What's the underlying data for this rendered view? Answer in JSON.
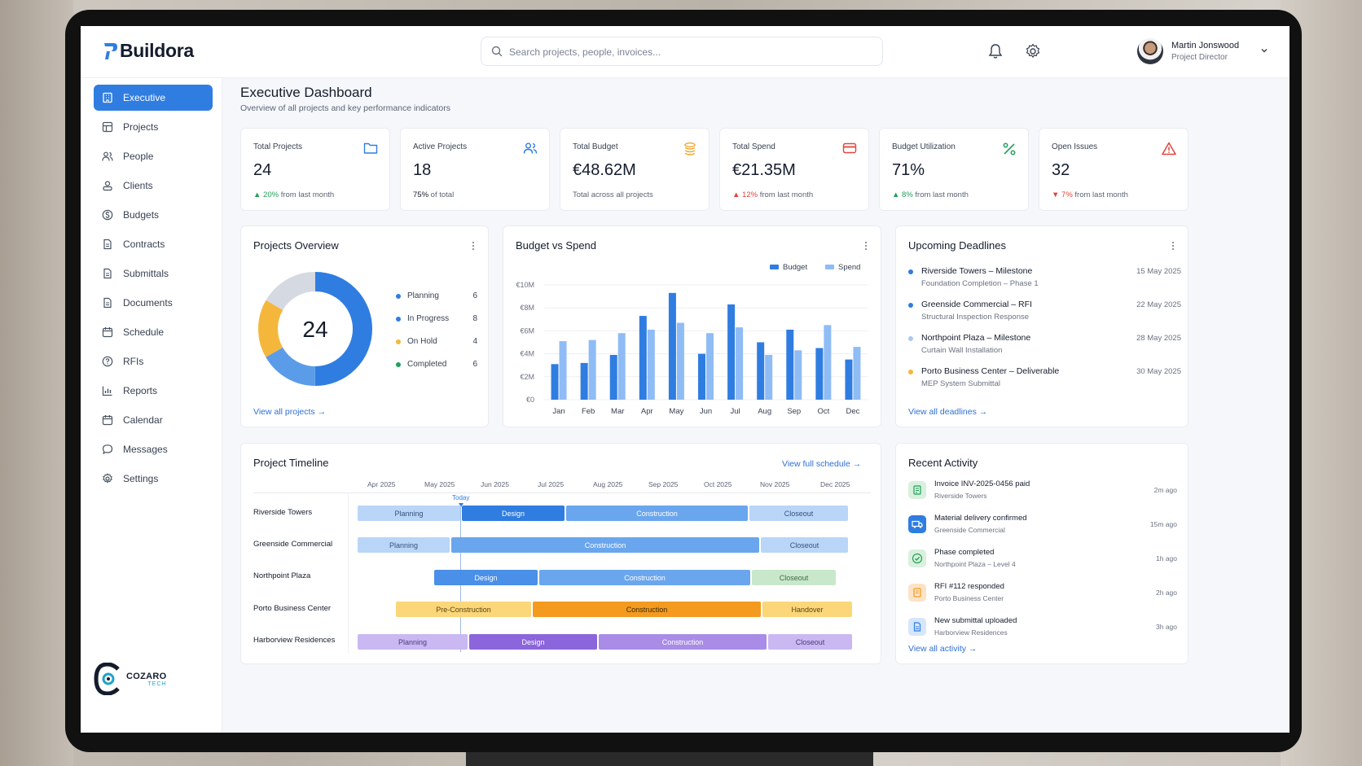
{
  "app": {
    "brand": "Buildora"
  },
  "search": {
    "placeholder": "Search projects, people, invoices..."
  },
  "user": {
    "name": "Martin Jonswood",
    "role": "Project Director"
  },
  "sidebar": {
    "items": [
      {
        "label": "Executive",
        "icon": "building-icon",
        "active": true
      },
      {
        "label": "Projects",
        "icon": "grid-icon"
      },
      {
        "label": "People",
        "icon": "people-icon"
      },
      {
        "label": "Clients",
        "icon": "clients-icon"
      },
      {
        "label": "Budgets",
        "icon": "dollar-icon"
      },
      {
        "label": "Contracts",
        "icon": "document-icon"
      },
      {
        "label": "Submittals",
        "icon": "document-icon"
      },
      {
        "label": "Documents",
        "icon": "document-icon"
      },
      {
        "label": "Schedule",
        "icon": "calendar-icon"
      },
      {
        "label": "RFIs",
        "icon": "question-icon"
      },
      {
        "label": "Reports",
        "icon": "bar-chart-icon"
      },
      {
        "label": "Calendar",
        "icon": "calendar-icon"
      },
      {
        "label": "Messages",
        "icon": "chat-icon"
      },
      {
        "label": "Settings",
        "icon": "gear-icon"
      }
    ],
    "footer_brand": {
      "name": "COZARO",
      "sub": "TECH"
    }
  },
  "header": {
    "title": "Executive Dashboard",
    "subtitle": "Overview of all projects and key performance indicators"
  },
  "kpis": [
    {
      "label": "Total Projects",
      "value": "24",
      "trend": "▲ 20%",
      "note": " from last month",
      "dir": "up",
      "icon": "folder-icon",
      "color": "#2f7de1"
    },
    {
      "label": "Active Projects",
      "value": "18",
      "trend": "75%",
      "note": " of total",
      "dir": "neutral",
      "icon": "people-icon",
      "color": "#2f7de1"
    },
    {
      "label": "Total Budget",
      "value": "€48.62M",
      "trend": "",
      "note": "Total across all projects",
      "dir": "neutral",
      "icon": "coins-icon",
      "color": "#f0a92a"
    },
    {
      "label": "Total Spend",
      "value": "€21.35M",
      "trend": "▲ 12%",
      "note": " from last month",
      "dir": "down",
      "icon": "card-icon",
      "color": "#e0453d"
    },
    {
      "label": "Budget Utilization",
      "value": "71%",
      "trend": "▲ 8%",
      "note": " from last month",
      "dir": "up",
      "icon": "percent-icon",
      "color": "#22a05b"
    },
    {
      "label": "Open Issues",
      "value": "32",
      "trend": "▼ 7%",
      "note": " from last month",
      "dir": "down",
      "icon": "warning-icon",
      "color": "#e0453d"
    }
  ],
  "projects_overview": {
    "title": "Projects Overview",
    "total": "24",
    "legend": [
      {
        "label": "Planning",
        "count": "6",
        "color": "#2f7de1"
      },
      {
        "label": "In Progress",
        "count": "8",
        "color": "#2f7de1"
      },
      {
        "label": "On Hold",
        "count": "4",
        "color": "#f5b73b"
      },
      {
        "label": "Completed",
        "count": "6",
        "color": "#22a05b"
      }
    ],
    "link": "View all projects"
  },
  "budget_vs_spend": {
    "title": "Budget vs Spend"
  },
  "chart_data": {
    "type": "bar",
    "title": "Budget vs Spend",
    "categories": [
      "Jan",
      "Feb",
      "Mar",
      "Apr",
      "May",
      "Jun",
      "Jul",
      "Aug",
      "Sep",
      "Oct",
      "Dec"
    ],
    "series": [
      {
        "name": "Budget",
        "color": "#2f7de1",
        "values": [
          3.1,
          3.2,
          3.9,
          7.3,
          9.3,
          4.0,
          8.3,
          5.0,
          6.1,
          4.5,
          3.5
        ]
      },
      {
        "name": "Spend",
        "color": "#8fbcf5",
        "values": [
          5.1,
          5.2,
          5.8,
          6.1,
          6.7,
          5.8,
          6.3,
          3.9,
          4.3,
          6.5,
          4.6
        ]
      }
    ],
    "y_ticks": [
      "€0",
      "€2M",
      "€4M",
      "€6M",
      "€8M",
      "€10M"
    ],
    "ylim": [
      0,
      10
    ],
    "legend_position": "top-right",
    "grid": true
  },
  "deadlines": {
    "title": "Upcoming Deadlines",
    "items": [
      {
        "title": "Riverside Towers – Milestone",
        "sub": "Foundation Completion – Phase 1",
        "date": "15 May 2025",
        "color": "#2f7de1"
      },
      {
        "title": "Greenside Commercial – RFI",
        "sub": "Structural Inspection Response",
        "date": "22 May 2025",
        "color": "#2f7de1"
      },
      {
        "title": "Northpoint Plaza – Milestone",
        "sub": "Curtain Wall Installation",
        "date": "28 May 2025",
        "color": "#a9c8f2"
      },
      {
        "title": "Porto Business Center – Deliverable",
        "sub": "MEP System Submittal",
        "date": "30 May 2025",
        "color": "#f5b73b"
      }
    ],
    "link": "View all deadlines"
  },
  "timeline": {
    "title": "Project Timeline",
    "link": "View full schedule",
    "today": "Today",
    "months": [
      "Apr 2025",
      "May 2025",
      "Jun 2025",
      "Jul 2025",
      "Aug 2025",
      "Sep 2025",
      "Oct 2025",
      "Nov 2025",
      "Dec 2025"
    ],
    "rows": [
      {
        "name": "Riverside Towers",
        "bars": [
          "Planning",
          "Design",
          "Construction",
          "Closeout"
        ]
      },
      {
        "name": "Greenside Commercial",
        "bars": [
          "Planning",
          "Construction",
          "Closeout"
        ]
      },
      {
        "name": "Northpoint Plaza",
        "bars": [
          "Design",
          "Construction",
          "Closeout"
        ]
      },
      {
        "name": "Porto Business Center",
        "bars": [
          "Pre-Construction",
          "Construction",
          "Handover"
        ]
      },
      {
        "name": "Harborview Residences",
        "bars": [
          "Planning",
          "Design",
          "Construction",
          "Closeout"
        ]
      }
    ]
  },
  "activity": {
    "title": "Recent Activity",
    "items": [
      {
        "title": "Invoice INV-2025-0456 paid",
        "sub": "Riverside Towers",
        "time": "2m ago",
        "icon": "invoice-icon"
      },
      {
        "title": "Material delivery confirmed",
        "sub": "Greenside Commercial",
        "time": "15m ago",
        "icon": "truck-icon"
      },
      {
        "title": "Phase completed",
        "sub": "Northpoint Plaza – Level 4",
        "time": "1h ago",
        "icon": "check-icon"
      },
      {
        "title": "RFI #112 responded",
        "sub": "Porto Business Center",
        "time": "2h ago",
        "icon": "rfi-icon"
      },
      {
        "title": "New submittal uploaded",
        "sub": "Harborview Residences",
        "time": "3h ago",
        "icon": "file-icon"
      }
    ],
    "link": "View all activity"
  }
}
